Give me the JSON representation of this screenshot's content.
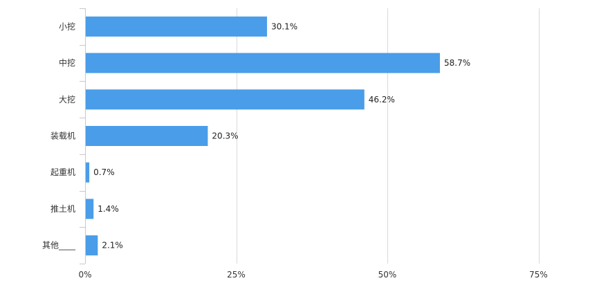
{
  "chart_data": {
    "type": "bar",
    "orientation": "horizontal",
    "categories": [
      "小挖",
      "中挖",
      "大挖",
      "装载机",
      "起重机",
      "推土机",
      "其他____"
    ],
    "values": [
      30.1,
      58.7,
      46.2,
      20.3,
      0.7,
      1.4,
      2.1
    ],
    "data_labels": [
      "30.1%",
      "58.7%",
      "46.2%",
      "20.3%",
      "0.7%",
      "1.4%",
      "2.1%"
    ],
    "x_ticks": [
      "0%",
      "25%",
      "50%",
      "75%"
    ],
    "x_tick_values": [
      0,
      25,
      50,
      75
    ],
    "xlim": [
      0,
      75
    ],
    "title": "",
    "xlabel": "",
    "ylabel": "",
    "grid": "vertical",
    "legend": "none",
    "colors": {
      "bar": "#4a9de8",
      "grid": "#d9d9d9",
      "axis": "#c8c8c8"
    }
  }
}
